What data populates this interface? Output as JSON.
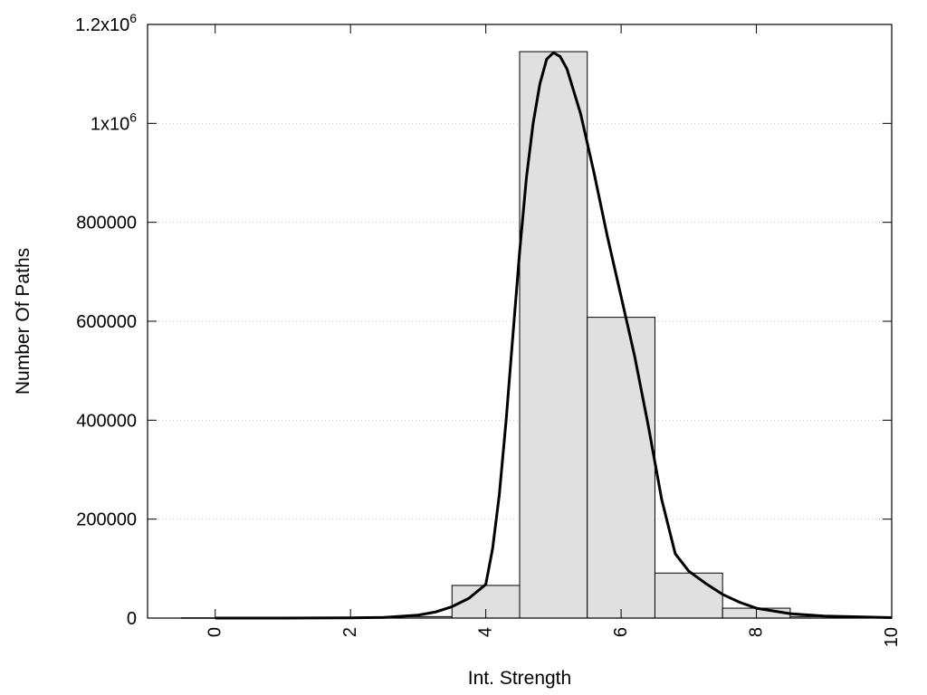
{
  "chart_data": {
    "type": "bar",
    "xlabel": "Int. Strength",
    "ylabel": "Number Of Paths",
    "xlim": [
      -1,
      10
    ],
    "ylim": [
      0,
      1200000
    ],
    "grid": true,
    "x_ticks": [
      {
        "value": 0,
        "label": "0"
      },
      {
        "value": 2,
        "label": "2"
      },
      {
        "value": 4,
        "label": "4"
      },
      {
        "value": 6,
        "label": "6"
      },
      {
        "value": 8,
        "label": "8"
      },
      {
        "value": 10,
        "label": "10"
      }
    ],
    "y_ticks": [
      {
        "value": 0,
        "label": "0"
      },
      {
        "value": 200000,
        "label": "200000"
      },
      {
        "value": 400000,
        "label": "400000"
      },
      {
        "value": 600000,
        "label": "600000"
      },
      {
        "value": 800000,
        "label": "800000"
      },
      {
        "value": 1000000,
        "base": "1x10",
        "exp": "6"
      },
      {
        "value": 1200000,
        "base": "1.2x10",
        "exp": "6"
      }
    ],
    "bars": [
      {
        "x": 0,
        "value": 500
      },
      {
        "x": 1,
        "value": 500
      },
      {
        "x": 2,
        "value": 1000
      },
      {
        "x": 3,
        "value": 3000
      },
      {
        "x": 4,
        "value": 66000
      },
      {
        "x": 5,
        "value": 1145000
      },
      {
        "x": 6,
        "value": 608000
      },
      {
        "x": 7,
        "value": 91000
      },
      {
        "x": 8,
        "value": 20000
      },
      {
        "x": 9,
        "value": 3000
      }
    ],
    "bar_width": 1,
    "fit_curve": [
      [
        0,
        0
      ],
      [
        1,
        0
      ],
      [
        2,
        500
      ],
      [
        2.5,
        1500
      ],
      [
        3,
        6000
      ],
      [
        3.25,
        12000
      ],
      [
        3.5,
        23000
      ],
      [
        3.75,
        40000
      ],
      [
        4,
        68000
      ],
      [
        4.1,
        140000
      ],
      [
        4.2,
        250000
      ],
      [
        4.3,
        400000
      ],
      [
        4.4,
        570000
      ],
      [
        4.5,
        740000
      ],
      [
        4.6,
        890000
      ],
      [
        4.7,
        1000000
      ],
      [
        4.8,
        1080000
      ],
      [
        4.9,
        1130000
      ],
      [
        5,
        1143000
      ],
      [
        5.1,
        1135000
      ],
      [
        5.2,
        1110000
      ],
      [
        5.4,
        1020000
      ],
      [
        5.6,
        900000
      ],
      [
        5.8,
        770000
      ],
      [
        6,
        650000
      ],
      [
        6.2,
        530000
      ],
      [
        6.4,
        390000
      ],
      [
        6.6,
        240000
      ],
      [
        6.8,
        130000
      ],
      [
        7,
        95000
      ],
      [
        7.25,
        70000
      ],
      [
        7.5,
        48000
      ],
      [
        7.75,
        32000
      ],
      [
        8,
        20000
      ],
      [
        8.5,
        9000
      ],
      [
        9,
        4000
      ],
      [
        10,
        1000
      ]
    ],
    "colors": {
      "bar_fill": "#e0e0e0",
      "bar_stroke": "#000000",
      "curve": "#000000",
      "grid": "#c8c8c8"
    }
  }
}
